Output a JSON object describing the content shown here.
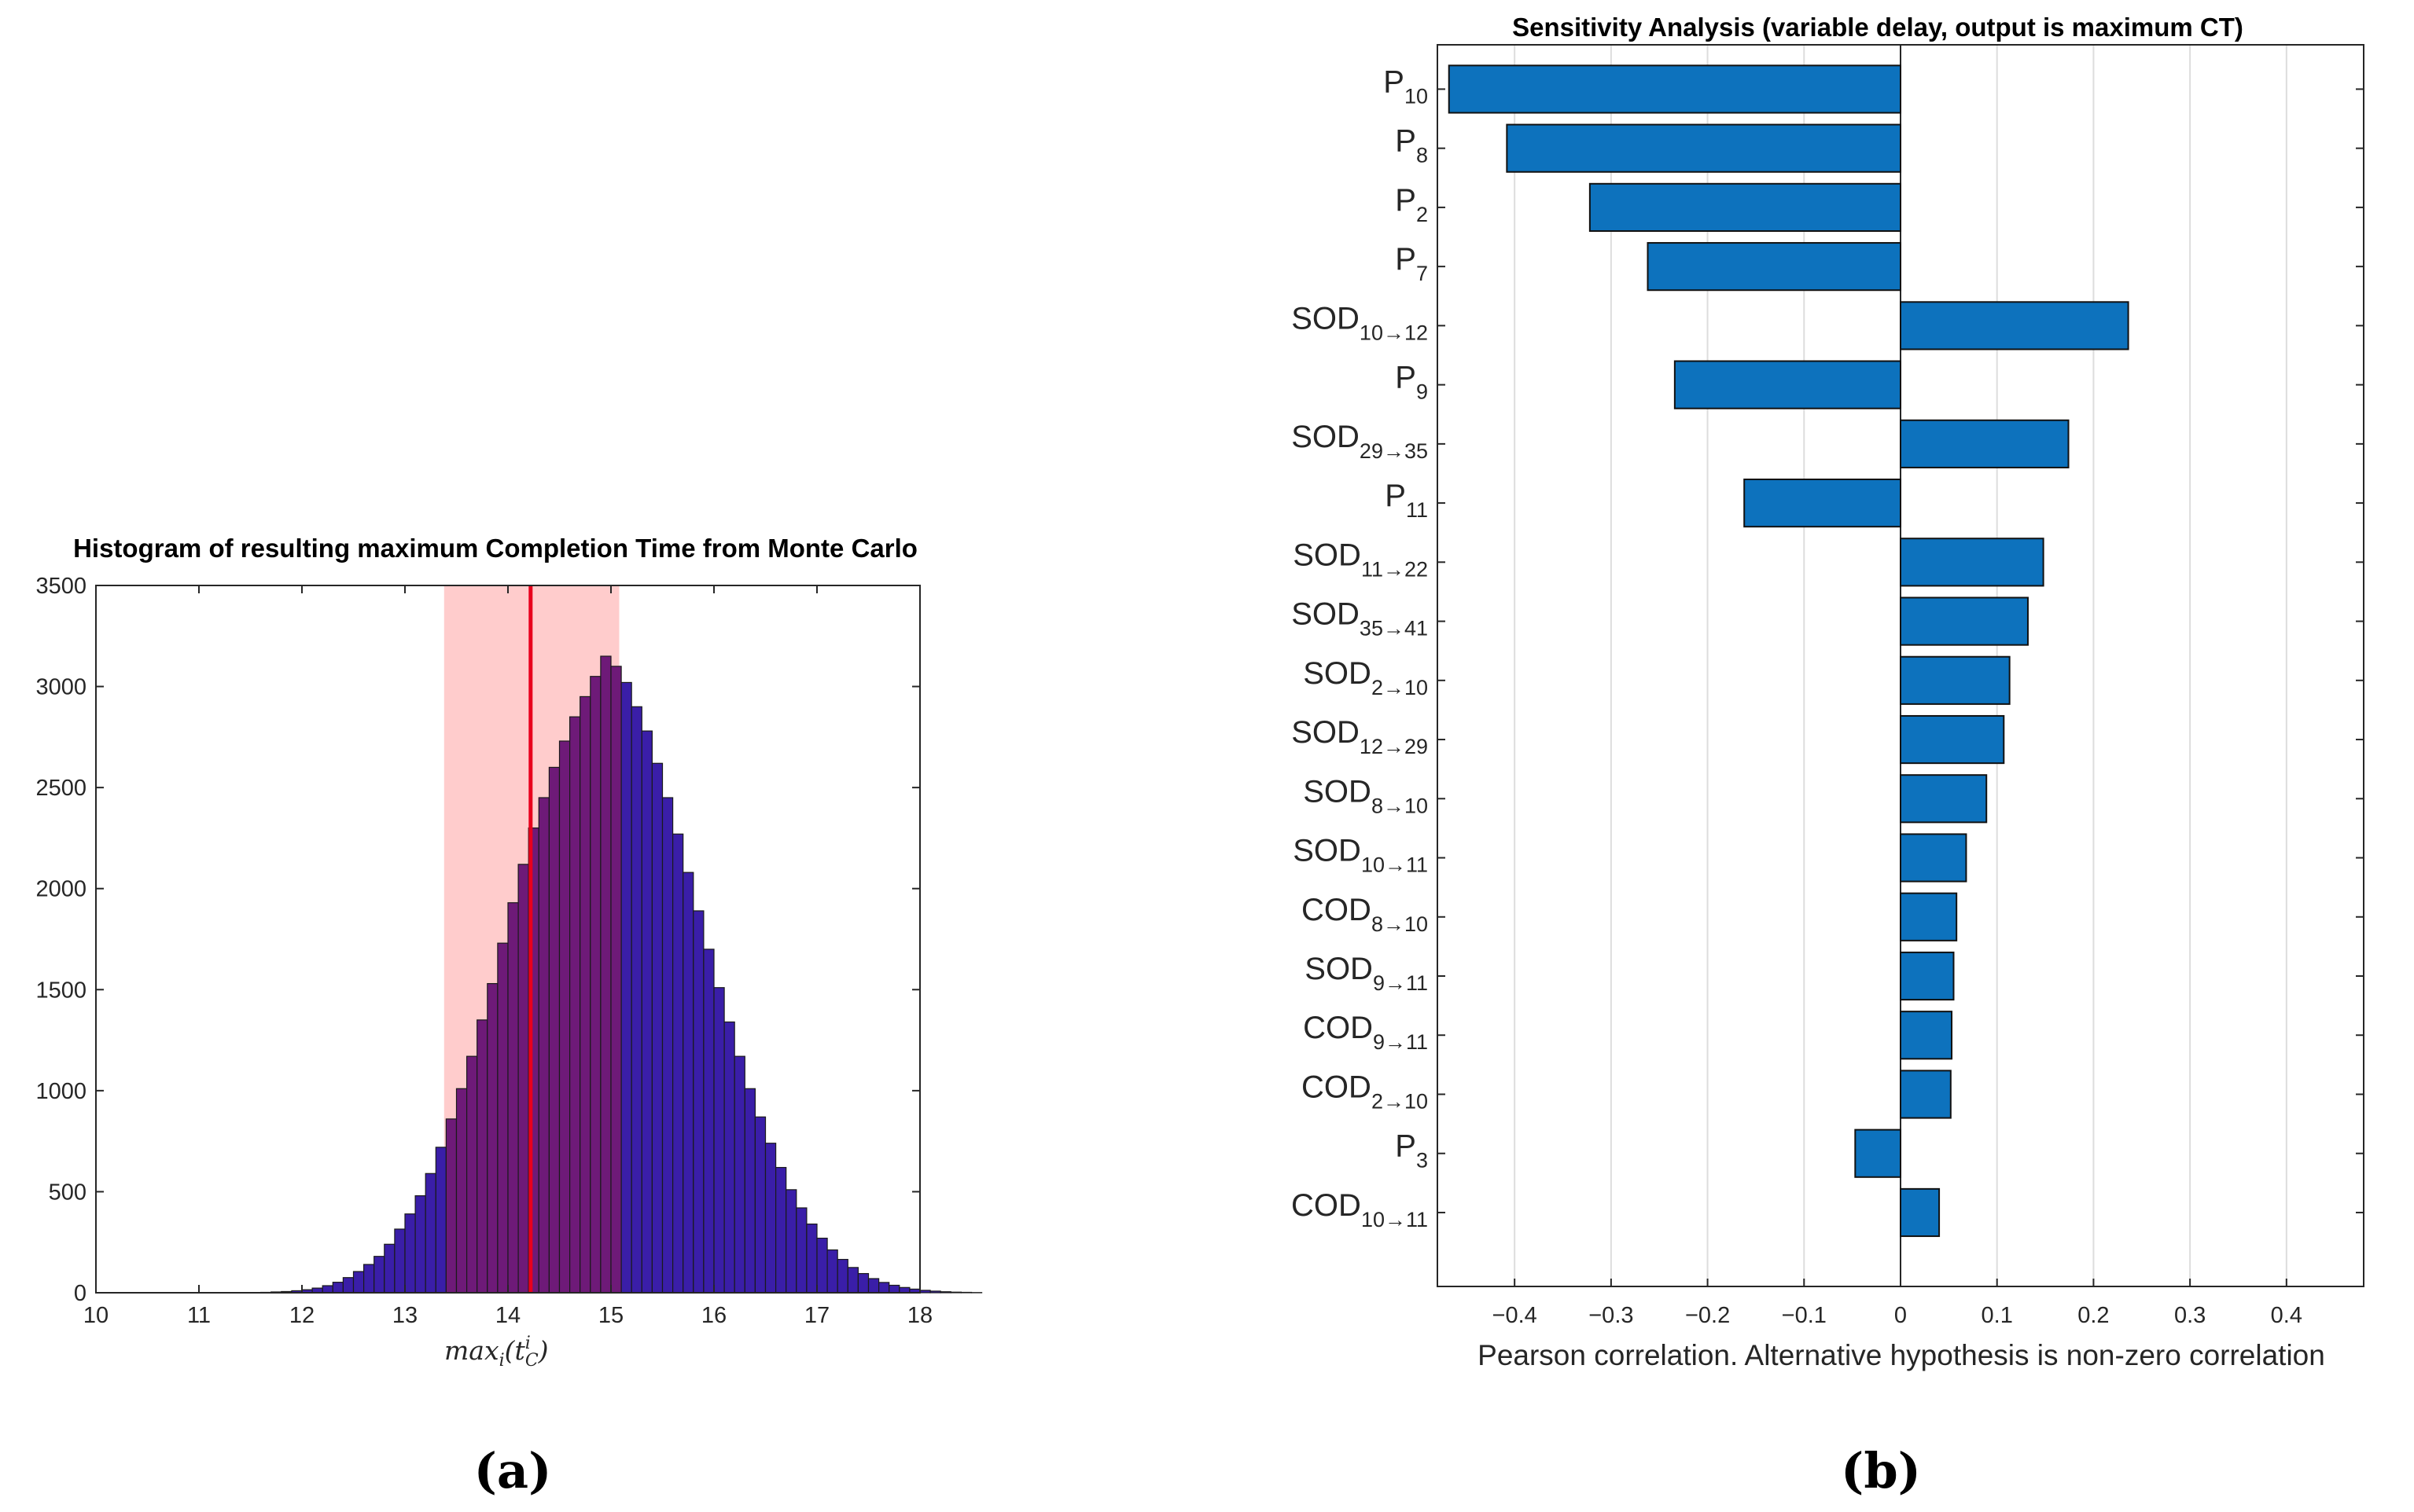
{
  "chart_data": [
    {
      "type": "bar",
      "panel_label": "(a)",
      "title": "Histogram of resulting maximum Completion Time from Monte Carlo",
      "xlabel": "max_i(t_C^i)",
      "xlabel_parts": {
        "base": "max",
        "sub1": "i",
        "paren_open": "(",
        "var": "t",
        "sup": "i",
        "sub2": "C",
        "paren_close": ")"
      },
      "ylabel": "",
      "xlim": [
        10,
        18
      ],
      "ylim": [
        0,
        3500
      ],
      "xticks": [
        "10",
        "11",
        "12",
        "13",
        "14",
        "15",
        "16",
        "17",
        "18"
      ],
      "yticks": [
        "0",
        "500",
        "1000",
        "1500",
        "2000",
        "2500",
        "3000",
        "3500"
      ],
      "bin_width": 0.1,
      "bin_start": 10.0,
      "counts": [
        0,
        0,
        0,
        0,
        0,
        0,
        0,
        0,
        0,
        0,
        0,
        0,
        0,
        0,
        0,
        0,
        2,
        4,
        6,
        10,
        15,
        23,
        35,
        52,
        75,
        105,
        140,
        180,
        240,
        315,
        390,
        480,
        590,
        720,
        860,
        1010,
        1170,
        1350,
        1530,
        1730,
        1930,
        2120,
        2300,
        2450,
        2600,
        2730,
        2850,
        2950,
        3050,
        3150,
        3100,
        3020,
        2900,
        2780,
        2620,
        2450,
        2270,
        2080,
        1890,
        1700,
        1510,
        1340,
        1170,
        1010,
        870,
        740,
        620,
        510,
        420,
        340,
        270,
        212,
        165,
        125,
        95,
        70,
        51,
        37,
        26,
        18,
        12,
        8,
        5,
        3,
        2,
        1,
        0,
        0,
        0,
        0
      ],
      "highlight_band": {
        "x_start": 13.38,
        "x_end": 15.08,
        "color": "#ffcccc"
      },
      "mean_line": {
        "x": 14.22,
        "color": "#e8001c"
      },
      "colors": {
        "bar_outside": "#3a1ea8",
        "bar_inside": "#6e1a78",
        "edge": "#1a1a1a"
      }
    },
    {
      "type": "bar",
      "orientation": "horizontal",
      "panel_label": "(b)",
      "title": "Sensitivity Analysis (variable delay, output is maximum CT)",
      "xlabel": "Pearson correlation. Alternative hypothesis is non-zero correlation",
      "ylabel": "",
      "xlim": [
        -0.48,
        0.48
      ],
      "grid": "x",
      "xticks": [
        "−0.4",
        "−0.3",
        "−0.2",
        "−0.1",
        "0",
        "0.1",
        "0.2",
        "0.3",
        "0.4"
      ],
      "xtick_values": [
        -0.4,
        -0.3,
        -0.2,
        -0.1,
        0,
        0.1,
        0.2,
        0.3,
        0.4
      ],
      "categories": [
        {
          "base": "P",
          "sub": "10"
        },
        {
          "base": "P",
          "sub": "8"
        },
        {
          "base": "P",
          "sub": "2"
        },
        {
          "base": "P",
          "sub": "7"
        },
        {
          "base": "SOD",
          "sub": "10→12"
        },
        {
          "base": "P",
          "sub": "9"
        },
        {
          "base": "SOD",
          "sub": "29→35"
        },
        {
          "base": "P",
          "sub": "11"
        },
        {
          "base": "SOD",
          "sub": "11→22"
        },
        {
          "base": "SOD",
          "sub": "35→41"
        },
        {
          "base": "SOD",
          "sub": "2→10"
        },
        {
          "base": "SOD",
          "sub": "12→29"
        },
        {
          "base": "SOD",
          "sub": "8→10"
        },
        {
          "base": "SOD",
          "sub": "10→11"
        },
        {
          "base": "COD",
          "sub": "8→10"
        },
        {
          "base": "SOD",
          "sub": "9→11"
        },
        {
          "base": "COD",
          "sub": "9→11"
        },
        {
          "base": "COD",
          "sub": "2→10"
        },
        {
          "base": "P",
          "sub": "3"
        },
        {
          "base": "COD",
          "sub": "10→11"
        }
      ],
      "values": [
        -0.468,
        -0.408,
        -0.322,
        -0.262,
        0.236,
        -0.234,
        0.174,
        -0.162,
        0.148,
        0.132,
        0.113,
        0.107,
        0.089,
        0.068,
        0.058,
        0.055,
        0.053,
        0.052,
        -0.047,
        0.04
      ],
      "colors": {
        "bar": "#0d72bd",
        "edge": "#111111",
        "grid": "#dddddd"
      }
    }
  ]
}
